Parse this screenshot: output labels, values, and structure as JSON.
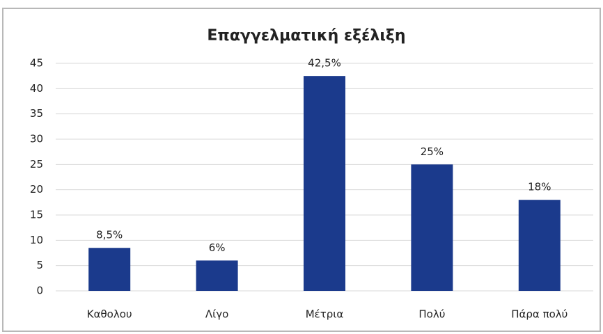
{
  "chart_data": {
    "type": "bar",
    "title": "Επαγγελματική εξέλιξη",
    "categories": [
      "Καθολου",
      "Λίγο",
      "Μέτρια",
      "Πολύ",
      "Πάρα πολύ"
    ],
    "values": [
      8.5,
      6,
      42.5,
      25,
      18
    ],
    "value_labels": [
      "8,5%",
      "6%",
      "42,5%",
      "25%",
      "18%"
    ],
    "color": "#1b3a8c",
    "ylim": [
      0,
      45
    ],
    "yticks": [
      0,
      5,
      10,
      15,
      20,
      25,
      30,
      35,
      40,
      45
    ],
    "grid": true
  }
}
